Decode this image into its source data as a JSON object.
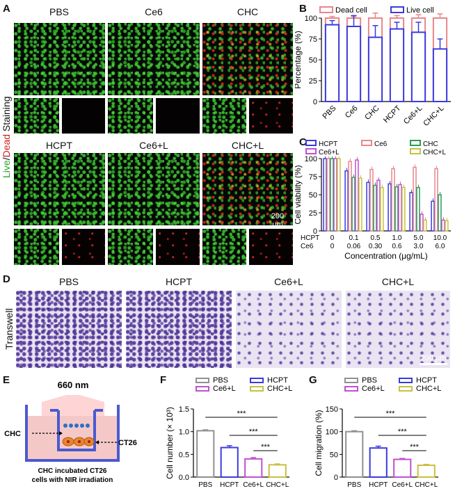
{
  "panels": {
    "A": "A",
    "B": "B",
    "C": "C",
    "D": "D",
    "E": "E",
    "F": "F",
    "G": "G"
  },
  "panelA": {
    "groups": [
      "PBS",
      "Ce6",
      "CHC",
      "HCPT",
      "Ce6+L",
      "CHC+L"
    ],
    "ylabel_live": "Live",
    "ylabel_sep": "/",
    "ylabel_dead": "Dead",
    "ylabel_rest": " Staining",
    "scalebar": "200 μm",
    "colors": {
      "live": "#3ec43a",
      "dead": "#e02a2a"
    }
  },
  "panelD": {
    "groups": [
      "PBS",
      "HCPT",
      "Ce6+L",
      "CHC+L"
    ],
    "ylabel": "Transwell",
    "scalebar": "200 μm",
    "colors": {
      "stain": "#4b3296",
      "background": "#e9e3f2"
    }
  },
  "panelE": {
    "laser": "660 nm",
    "label_chc": "CHC",
    "label_ct26": "CT26",
    "caption_line1": "CHC incubated CT26",
    "caption_line2": "cells with NIR irradiation"
  },
  "chart_data": [
    {
      "id": "B",
      "type": "bar",
      "categories": [
        "PBS",
        "Ce6",
        "CHC",
        "HCPT",
        "Ce6+L",
        "CHC+L"
      ],
      "series": [
        {
          "name": "Dead cell",
          "color": "#e8868a",
          "values": [
            100,
            100,
            100,
            100,
            100,
            100
          ],
          "errors": [
            2,
            2,
            6,
            3,
            4,
            5
          ]
        },
        {
          "name": "Live cell",
          "color": "#3a3ae0",
          "values": [
            92,
            90,
            77,
            87,
            83,
            63
          ],
          "errors": [
            5,
            13,
            14,
            8,
            12,
            12
          ]
        }
      ],
      "ylabel": "Percentage (%)",
      "ylim": [
        0,
        100
      ],
      "yticks": [
        0,
        25,
        50,
        75,
        100
      ],
      "legend": "top"
    },
    {
      "id": "C",
      "type": "bar",
      "categories": [
        "0",
        "0.1",
        "0.5",
        "1.0",
        "5.0",
        "10.0"
      ],
      "row_labels": [
        "HCPT",
        "Ce6"
      ],
      "row_values": [
        [
          "0",
          "0.1",
          "0.5",
          "1.0",
          "5.0",
          "10.0"
        ],
        [
          "0",
          "0.06",
          "0.30",
          "0.6",
          "3.0",
          "6.0"
        ]
      ],
      "series": [
        {
          "name": "HCPT",
          "color": "#3a3ae0",
          "values": [
            100,
            83,
            67,
            65,
            53,
            41
          ]
        },
        {
          "name": "Ce6",
          "color": "#e8868a",
          "values": [
            100,
            96,
            85,
            86,
            88,
            86
          ]
        },
        {
          "name": "CHC",
          "color": "#2a9a5a",
          "values": [
            100,
            74,
            63,
            61,
            60,
            50
          ]
        },
        {
          "name": "Ce6+L",
          "color": "#c050d0",
          "values": [
            100,
            98,
            70,
            64,
            23,
            15
          ]
        },
        {
          "name": "CHC+L",
          "color": "#c8c040",
          "values": [
            100,
            73,
            60,
            60,
            15,
            14
          ]
        }
      ],
      "errors": [
        3,
        4,
        4,
        4,
        4,
        4
      ],
      "xlabel": "Concentration (μg/mL)",
      "ylabel": "Cell viability (%)",
      "ylim": [
        0,
        100
      ],
      "yticks": [
        0,
        25,
        50,
        75,
        100
      ],
      "legend": "top"
    },
    {
      "id": "F",
      "type": "bar",
      "categories": [
        "PBS",
        "HCPT",
        "Ce6+L",
        "CHC+L"
      ],
      "series": [
        {
          "name": "PBS",
          "color": "#909090",
          "value": 1.02,
          "error": 0.02
        },
        {
          "name": "HCPT",
          "color": "#3a3ae0",
          "value": 0.65,
          "error": 0.04
        },
        {
          "name": "Ce6+L",
          "color": "#c050d0",
          "value": 0.4,
          "error": 0.03
        },
        {
          "name": "CHC+L",
          "color": "#c8c040",
          "value": 0.27,
          "error": 0.02
        }
      ],
      "ylabel": "Cell number (× 10³)",
      "ylim": [
        0,
        1.5
      ],
      "yticks": [
        "0.0",
        "0.5",
        "1.0",
        "1.5"
      ],
      "significance": "***",
      "legend": "top"
    },
    {
      "id": "G",
      "type": "bar",
      "categories": [
        "PBS",
        "HCPT",
        "Ce6+L",
        "CHC+L"
      ],
      "series": [
        {
          "name": "PBS",
          "color": "#909090",
          "value": 100,
          "error": 2
        },
        {
          "name": "HCPT",
          "color": "#3a3ae0",
          "value": 64,
          "error": 4
        },
        {
          "name": "Ce6+L",
          "color": "#c050d0",
          "value": 39,
          "error": 2
        },
        {
          "name": "CHC+L",
          "color": "#c8c040",
          "value": 26,
          "error": 2
        }
      ],
      "ylabel": "Cell migration (%)",
      "ylim": [
        0,
        150
      ],
      "yticks": [
        "0",
        "50",
        "100",
        "150"
      ],
      "significance": "***",
      "legend": "top"
    }
  ]
}
